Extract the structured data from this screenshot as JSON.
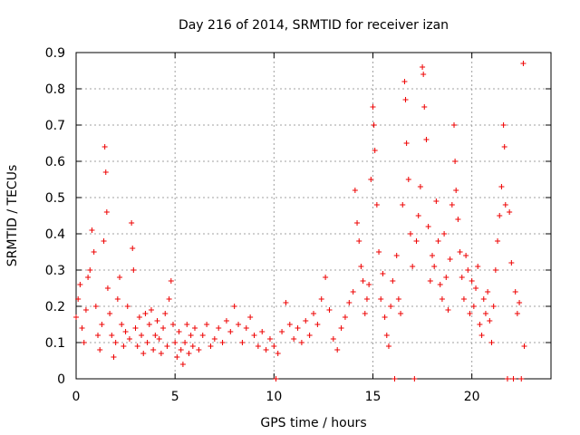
{
  "chart_data": {
    "type": "scatter",
    "title": "Day 216 of 2014, SRMTID for receiver izan",
    "xlabel": "GPS time / hours",
    "ylabel": "SRMTID / TECUs",
    "xlim": [
      0,
      24
    ],
    "ylim": [
      0,
      0.9
    ],
    "x_ticks": [
      0,
      5,
      10,
      15,
      20
    ],
    "y_ticks": [
      0,
      0.1,
      0.2,
      0.3,
      0.4,
      0.5,
      0.6,
      0.7,
      0.8,
      0.9
    ],
    "x_tick_labels": [
      "0",
      "5",
      "10",
      "15",
      "20"
    ],
    "y_tick_labels": [
      "0",
      "0.1",
      "0.2",
      "0.3",
      "0.4",
      "0.5",
      "0.6",
      "0.7",
      "0.8",
      "0.9"
    ],
    "grid": true,
    "marker": "+",
    "color": "#ee0000",
    "series": [
      {
        "name": "SRMTID",
        "points": [
          [
            0.0,
            0.17
          ],
          [
            0.1,
            0.22
          ],
          [
            0.2,
            0.26
          ],
          [
            0.3,
            0.14
          ],
          [
            0.4,
            0.1
          ],
          [
            0.5,
            0.19
          ],
          [
            0.6,
            0.28
          ],
          [
            0.7,
            0.3
          ],
          [
            0.8,
            0.41
          ],
          [
            0.9,
            0.35
          ],
          [
            1.0,
            0.2
          ],
          [
            1.1,
            0.12
          ],
          [
            1.2,
            0.08
          ],
          [
            1.3,
            0.15
          ],
          [
            1.4,
            0.38
          ],
          [
            1.45,
            0.64
          ],
          [
            1.5,
            0.57
          ],
          [
            1.55,
            0.46
          ],
          [
            1.6,
            0.25
          ],
          [
            1.7,
            0.18
          ],
          [
            1.8,
            0.12
          ],
          [
            1.9,
            0.06
          ],
          [
            2.0,
            0.1
          ],
          [
            2.1,
            0.22
          ],
          [
            2.2,
            0.28
          ],
          [
            2.3,
            0.15
          ],
          [
            2.4,
            0.09
          ],
          [
            2.5,
            0.13
          ],
          [
            2.6,
            0.2
          ],
          [
            2.7,
            0.11
          ],
          [
            2.8,
            0.43
          ],
          [
            2.85,
            0.36
          ],
          [
            2.9,
            0.3
          ],
          [
            3.0,
            0.14
          ],
          [
            3.1,
            0.09
          ],
          [
            3.2,
            0.17
          ],
          [
            3.3,
            0.12
          ],
          [
            3.4,
            0.07
          ],
          [
            3.5,
            0.18
          ],
          [
            3.6,
            0.1
          ],
          [
            3.7,
            0.15
          ],
          [
            3.8,
            0.19
          ],
          [
            3.9,
            0.08
          ],
          [
            4.0,
            0.12
          ],
          [
            4.1,
            0.16
          ],
          [
            4.2,
            0.11
          ],
          [
            4.3,
            0.07
          ],
          [
            4.4,
            0.14
          ],
          [
            4.5,
            0.18
          ],
          [
            4.6,
            0.09
          ],
          [
            4.7,
            0.22
          ],
          [
            4.8,
            0.27
          ],
          [
            4.9,
            0.15
          ],
          [
            5.0,
            0.1
          ],
          [
            5.1,
            0.06
          ],
          [
            5.2,
            0.13
          ],
          [
            5.3,
            0.08
          ],
          [
            5.4,
            0.04
          ],
          [
            5.5,
            0.1
          ],
          [
            5.6,
            0.15
          ],
          [
            5.7,
            0.07
          ],
          [
            5.8,
            0.12
          ],
          [
            5.9,
            0.09
          ],
          [
            6.0,
            0.14
          ],
          [
            6.2,
            0.08
          ],
          [
            6.4,
            0.12
          ],
          [
            6.6,
            0.15
          ],
          [
            6.8,
            0.09
          ],
          [
            7.0,
            0.11
          ],
          [
            7.2,
            0.14
          ],
          [
            7.4,
            0.1
          ],
          [
            7.6,
            0.16
          ],
          [
            7.8,
            0.13
          ],
          [
            8.0,
            0.2
          ],
          [
            8.2,
            0.15
          ],
          [
            8.4,
            0.1
          ],
          [
            8.6,
            0.14
          ],
          [
            8.8,
            0.17
          ],
          [
            9.0,
            0.12
          ],
          [
            9.2,
            0.09
          ],
          [
            9.4,
            0.13
          ],
          [
            9.6,
            0.08
          ],
          [
            9.8,
            0.11
          ],
          [
            10.0,
            0.09
          ],
          [
            10.1,
            0.0
          ],
          [
            10.2,
            0.07
          ],
          [
            10.4,
            0.13
          ],
          [
            10.6,
            0.21
          ],
          [
            10.8,
            0.15
          ],
          [
            11.0,
            0.11
          ],
          [
            11.2,
            0.14
          ],
          [
            11.4,
            0.1
          ],
          [
            11.6,
            0.16
          ],
          [
            11.8,
            0.12
          ],
          [
            12.0,
            0.18
          ],
          [
            12.2,
            0.15
          ],
          [
            12.4,
            0.22
          ],
          [
            12.6,
            0.28
          ],
          [
            12.8,
            0.19
          ],
          [
            13.0,
            0.11
          ],
          [
            13.2,
            0.08
          ],
          [
            13.4,
            0.14
          ],
          [
            13.6,
            0.17
          ],
          [
            13.8,
            0.21
          ],
          [
            14.0,
            0.24
          ],
          [
            14.1,
            0.52
          ],
          [
            14.2,
            0.43
          ],
          [
            14.3,
            0.38
          ],
          [
            14.4,
            0.31
          ],
          [
            14.5,
            0.27
          ],
          [
            14.6,
            0.18
          ],
          [
            14.7,
            0.22
          ],
          [
            14.8,
            0.26
          ],
          [
            14.9,
            0.55
          ],
          [
            15.0,
            0.75
          ],
          [
            15.05,
            0.7
          ],
          [
            15.1,
            0.63
          ],
          [
            15.2,
            0.48
          ],
          [
            15.3,
            0.35
          ],
          [
            15.4,
            0.22
          ],
          [
            15.5,
            0.29
          ],
          [
            15.6,
            0.17
          ],
          [
            15.7,
            0.12
          ],
          [
            15.8,
            0.09
          ],
          [
            15.9,
            0.2
          ],
          [
            16.0,
            0.27
          ],
          [
            16.1,
            0.0
          ],
          [
            16.2,
            0.34
          ],
          [
            16.3,
            0.22
          ],
          [
            16.4,
            0.18
          ],
          [
            16.5,
            0.48
          ],
          [
            16.6,
            0.82
          ],
          [
            16.65,
            0.77
          ],
          [
            16.7,
            0.65
          ],
          [
            16.8,
            0.55
          ],
          [
            16.9,
            0.4
          ],
          [
            17.0,
            0.31
          ],
          [
            17.1,
            0.0
          ],
          [
            17.2,
            0.38
          ],
          [
            17.3,
            0.45
          ],
          [
            17.4,
            0.53
          ],
          [
            17.5,
            0.86
          ],
          [
            17.55,
            0.84
          ],
          [
            17.6,
            0.75
          ],
          [
            17.7,
            0.66
          ],
          [
            17.8,
            0.42
          ],
          [
            17.9,
            0.27
          ],
          [
            18.0,
            0.34
          ],
          [
            18.1,
            0.31
          ],
          [
            18.2,
            0.49
          ],
          [
            18.3,
            0.38
          ],
          [
            18.4,
            0.26
          ],
          [
            18.5,
            0.22
          ],
          [
            18.6,
            0.4
          ],
          [
            18.7,
            0.28
          ],
          [
            18.8,
            0.19
          ],
          [
            18.9,
            0.33
          ],
          [
            19.0,
            0.48
          ],
          [
            19.1,
            0.7
          ],
          [
            19.15,
            0.6
          ],
          [
            19.2,
            0.52
          ],
          [
            19.3,
            0.44
          ],
          [
            19.4,
            0.35
          ],
          [
            19.5,
            0.28
          ],
          [
            19.6,
            0.22
          ],
          [
            19.7,
            0.34
          ],
          [
            19.8,
            0.3
          ],
          [
            19.9,
            0.18
          ],
          [
            20.0,
            0.27
          ],
          [
            20.1,
            0.2
          ],
          [
            20.2,
            0.25
          ],
          [
            20.3,
            0.31
          ],
          [
            20.4,
            0.15
          ],
          [
            20.5,
            0.12
          ],
          [
            20.6,
            0.22
          ],
          [
            20.7,
            0.18
          ],
          [
            20.8,
            0.24
          ],
          [
            20.9,
            0.16
          ],
          [
            21.0,
            0.1
          ],
          [
            21.1,
            0.2
          ],
          [
            21.2,
            0.3
          ],
          [
            21.3,
            0.38
          ],
          [
            21.4,
            0.45
          ],
          [
            21.5,
            0.53
          ],
          [
            21.6,
            0.7
          ],
          [
            21.65,
            0.64
          ],
          [
            21.7,
            0.48
          ],
          [
            21.8,
            0.0
          ],
          [
            21.9,
            0.46
          ],
          [
            22.0,
            0.32
          ],
          [
            22.1,
            0.0
          ],
          [
            22.2,
            0.24
          ],
          [
            22.3,
            0.18
          ],
          [
            22.4,
            0.21
          ],
          [
            22.5,
            0.0
          ],
          [
            22.6,
            0.87
          ],
          [
            22.65,
            0.09
          ]
        ]
      }
    ]
  }
}
